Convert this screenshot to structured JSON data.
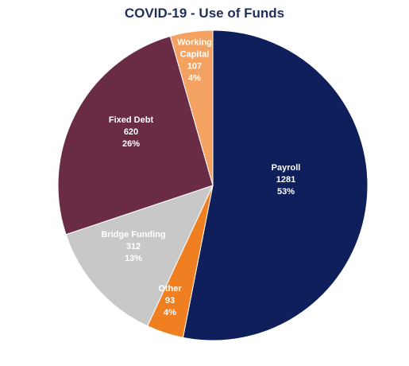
{
  "chart_data": {
    "type": "pie",
    "title": "COVID-19 - Use of Funds",
    "slices": [
      {
        "name": "Payroll",
        "value": 1281,
        "percent": "53%",
        "color": "#0e1f5b"
      },
      {
        "name": "Other",
        "value": 93,
        "percent": "4%",
        "color": "#f07f22"
      },
      {
        "name": "Bridge Funding",
        "value": 312,
        "percent": "13%",
        "color": "#c8c8c8"
      },
      {
        "name": "Fixed Debt",
        "value": 620,
        "percent": "26%",
        "color": "#6a2b45"
      },
      {
        "name": "Working Capital",
        "value": 107,
        "percent": "4%",
        "color": "#f4a261"
      }
    ],
    "start_angle_deg": 0,
    "direction": "clockwise",
    "legend": "none",
    "data_labels": "inside"
  }
}
